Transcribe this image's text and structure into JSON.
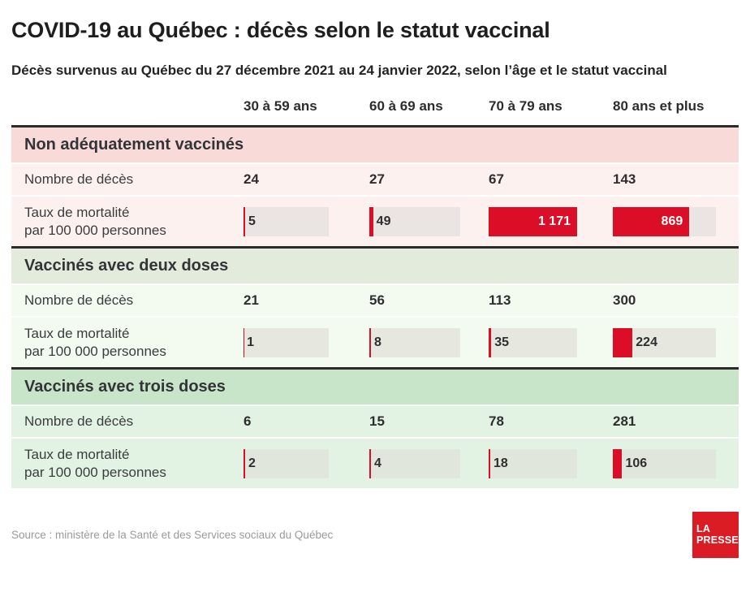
{
  "page": {
    "title": "COVID-19 au Québec : décès selon le statut vaccinal",
    "subtitle": "Décès survenus au Québec du 27 décembre 2021 au 24 janvier 2022, selon l’âge et le statut vaccinal",
    "source": "Source : ministère de la Santé et des Services sociaux du Québec",
    "logo": {
      "line1": "LA",
      "line2": "PRESSE"
    }
  },
  "colors": {
    "bar_red": "#dc0d26",
    "logo_red": "#dc1c24",
    "section1_band": "#f8dbd9",
    "section1_row": "#fdf1ef",
    "section2_band": "#e3ecdc",
    "section2_row": "#f3faf0",
    "section3_band": "#c9e5c9",
    "section3_row": "#e2f3e4",
    "bar_track_gray": "#e7e4e1",
    "rule_dark": "#2b2b2b"
  },
  "columns": [
    "30 à 59 ans",
    "60 à 69 ans",
    "70 à 79 ans",
    "80 ans et plus"
  ],
  "row_labels": {
    "deaths": "Nombre de décès",
    "rate_line1": "Taux de mortalité",
    "rate_line2": "par 100 000 personnes"
  },
  "table": {
    "sections": [
      {
        "title": "Non adéquatement vaccinés",
        "deaths": [
          "24",
          "27",
          "67",
          "143"
        ],
        "rates": [
          {
            "label": "5",
            "rate": 5,
            "inside": false
          },
          {
            "label": "49",
            "rate": 49,
            "inside": false
          },
          {
            "label": "1 171",
            "rate": 1171,
            "inside": true
          },
          {
            "label": "869",
            "rate": 869,
            "inside": true
          }
        ]
      },
      {
        "title": "Vaccinés avec deux doses",
        "deaths": [
          "21",
          "56",
          "113",
          "300"
        ],
        "rates": [
          {
            "label": "1",
            "rate": 1,
            "inside": false
          },
          {
            "label": "8",
            "rate": 8,
            "inside": false
          },
          {
            "label": "35",
            "rate": 35,
            "inside": false
          },
          {
            "label": "224",
            "rate": 224,
            "inside": false
          }
        ]
      },
      {
        "title": "Vaccinés avec trois doses",
        "deaths": [
          "6",
          "15",
          "78",
          "281"
        ],
        "rates": [
          {
            "label": "2",
            "rate": 2,
            "inside": false
          },
          {
            "label": "4",
            "rate": 4,
            "inside": false
          },
          {
            "label": "18",
            "rate": 18,
            "inside": false
          },
          {
            "label": "106",
            "rate": 106,
            "inside": false
          }
        ]
      }
    ]
  },
  "chart_data": {
    "type": "bar",
    "title": "COVID-19 au Québec : décès selon le statut vaccinal",
    "subtitle": "Décès survenus au Québec du 27 décembre 2021 au 24 janvier 2022, selon l’âge et le statut vaccinal",
    "categories": [
      "30 à 59 ans",
      "60 à 69 ans",
      "70 à 79 ans",
      "80 ans et plus"
    ],
    "scale_max": 1171,
    "legend_position": "none",
    "groups": [
      {
        "label": "Non adéquatement vaccinés",
        "deaths": [
          24,
          27,
          67,
          143
        ],
        "mortality_rate_per_100k": [
          5,
          49,
          1171,
          869
        ]
      },
      {
        "label": "Vaccinés avec deux doses",
        "deaths": [
          21,
          56,
          113,
          300
        ],
        "mortality_rate_per_100k": [
          1,
          8,
          35,
          224
        ]
      },
      {
        "label": "Vaccinés avec trois doses",
        "deaths": [
          6,
          15,
          78,
          281
        ],
        "mortality_rate_per_100k": [
          2,
          4,
          18,
          106
        ]
      }
    ]
  }
}
